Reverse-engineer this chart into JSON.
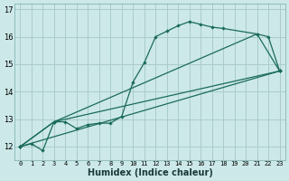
{
  "xlabel": "Humidex (Indice chaleur)",
  "background_color": "#cce8e8",
  "grid_color": "#aacccc",
  "line_color": "#1a6b5a",
  "xlim": [
    -0.5,
    23.5
  ],
  "ylim": [
    11.5,
    17.2
  ],
  "yticks": [
    12,
    13,
    14,
    15,
    16,
    17
  ],
  "xticks": [
    0,
    1,
    2,
    3,
    4,
    5,
    6,
    7,
    8,
    9,
    10,
    11,
    12,
    13,
    14,
    15,
    16,
    17,
    18,
    19,
    20,
    21,
    22,
    23
  ],
  "line1_x": [
    0,
    1,
    2,
    3,
    4,
    5,
    6,
    7,
    8,
    9,
    10,
    11,
    12,
    13,
    14,
    15,
    16,
    17,
    18,
    21,
    22,
    23
  ],
  "line1_y": [
    12.0,
    12.1,
    11.85,
    12.9,
    12.9,
    12.65,
    12.8,
    12.85,
    12.85,
    13.1,
    14.35,
    15.05,
    16.0,
    16.2,
    16.4,
    16.55,
    16.45,
    16.35,
    16.3,
    16.1,
    16.0,
    14.75
  ],
  "line2_x": [
    0,
    3,
    21,
    23
  ],
  "line2_y": [
    12.0,
    12.9,
    16.1,
    14.75
  ],
  "line3_x": [
    0,
    3,
    23
  ],
  "line3_y": [
    12.0,
    12.9,
    14.75
  ],
  "line4_x": [
    0,
    23
  ],
  "line4_y": [
    12.0,
    14.75
  ]
}
